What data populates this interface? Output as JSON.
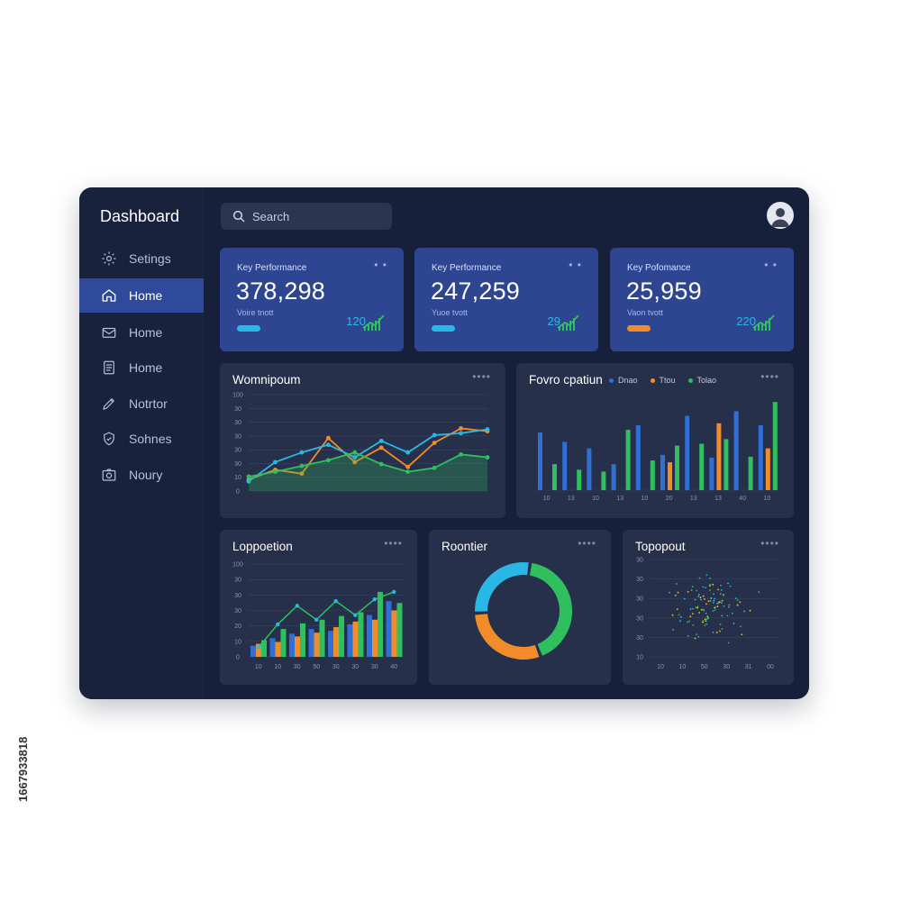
{
  "app": {
    "title": "Dashboard"
  },
  "search": {
    "placeholder": "Search"
  },
  "sidebar": {
    "items": [
      {
        "label": "Setings",
        "icon": "gear-icon",
        "active": false
      },
      {
        "label": "Home",
        "icon": "home-icon",
        "active": true
      },
      {
        "label": "Home",
        "icon": "mail-icon",
        "active": false
      },
      {
        "label": "Home",
        "icon": "document-icon",
        "active": false
      },
      {
        "label": "Notrtor",
        "icon": "pen-icon",
        "active": false
      },
      {
        "label": "Sohnes",
        "icon": "shield-icon",
        "active": false
      },
      {
        "label": "Noury",
        "icon": "camera-icon",
        "active": false
      }
    ]
  },
  "kpis": [
    {
      "label": "Key Performance",
      "value": "378,298",
      "sub": "Voire tnott",
      "trend": "120",
      "pill_color": "#2bb7e6"
    },
    {
      "label": "Key Performance",
      "value": "247,259",
      "sub": "Yuoe tvott",
      "trend": "29",
      "pill_color": "#2bb7e6"
    },
    {
      "label": "Key Pofomance",
      "value": "25,959",
      "sub": "Vaon tvott",
      "trend": "220",
      "pill_color": "#f28c2a"
    }
  ],
  "colors": {
    "green": "#2fbf5f",
    "orange": "#f28c2a",
    "blue": "#2f6fd6",
    "cyan": "#2bb7e6"
  },
  "chart_data": [
    {
      "type": "line",
      "title": "Womnipoum",
      "y_ticks": [
        "0",
        "10",
        "30",
        "30",
        "30",
        "30",
        "30",
        "100"
      ],
      "x": [
        0,
        1,
        2,
        3,
        4,
        5,
        6,
        7,
        8,
        9
      ],
      "series": [
        {
          "color": "#f28c2a",
          "values": [
            12,
            22,
            18,
            55,
            30,
            45,
            25,
            50,
            65,
            62
          ]
        },
        {
          "color": "#2bb7e6",
          "values": [
            10,
            30,
            40,
            48,
            35,
            52,
            40,
            58,
            60,
            64
          ]
        },
        {
          "color": "#2fbf5f",
          "values": [
            15,
            20,
            26,
            32,
            40,
            28,
            20,
            24,
            38,
            35
          ]
        }
      ]
    },
    {
      "type": "bar",
      "title": "Fovro cpatiun",
      "legend": [
        "Dnao",
        "Ttou",
        "Tolao"
      ],
      "x_ticks": [
        "10",
        "13",
        "10",
        "13",
        "10",
        "20",
        "13",
        "13",
        "40",
        "10"
      ],
      "series": [
        {
          "name": "Dnao",
          "color": "#2f6fd6",
          "values": [
            62,
            52,
            45,
            28,
            70,
            38,
            80,
            35,
            85,
            70
          ]
        },
        {
          "name": "Ttou",
          "color": "#f28c2a",
          "values": [
            0,
            0,
            0,
            0,
            0,
            30,
            0,
            72,
            0,
            45
          ]
        },
        {
          "name": "Tolao",
          "color": "#2fbf5f",
          "values": [
            28,
            22,
            20,
            65,
            32,
            48,
            50,
            55,
            36,
            95
          ]
        }
      ]
    },
    {
      "type": "bar",
      "title": "Loppoetion",
      "y_ticks": [
        "0",
        "10",
        "20",
        "30",
        "30",
        "30",
        "100"
      ],
      "x_ticks": [
        "10",
        "10",
        "30",
        "50",
        "30",
        "30",
        "30",
        "40"
      ],
      "series": [
        {
          "color": "#2f6fd6",
          "values": [
            12,
            20,
            25,
            30,
            28,
            35,
            45,
            60
          ]
        },
        {
          "color": "#f28c2a",
          "values": [
            14,
            16,
            22,
            26,
            32,
            38,
            40,
            50
          ]
        },
        {
          "color": "#2fbf5f",
          "values": [
            18,
            30,
            36,
            40,
            44,
            48,
            70,
            58
          ]
        }
      ],
      "line": [
        10,
        35,
        55,
        40,
        60,
        45,
        62,
        70
      ]
    },
    {
      "type": "pie",
      "title": "Roontier",
      "slices": [
        {
          "color": "#2fbf5f",
          "value": 42
        },
        {
          "color": "#f28c2a",
          "value": 30
        },
        {
          "color": "#2bb7e6",
          "value": 28
        }
      ]
    },
    {
      "type": "scatter",
      "title": "Topopout",
      "y_ticks": [
        "10",
        "30",
        "30",
        "30",
        "30",
        "30"
      ],
      "x_ticks": [
        "10",
        "10",
        "50",
        "30",
        "31",
        "00"
      ]
    }
  ],
  "watermark": "1667933818"
}
